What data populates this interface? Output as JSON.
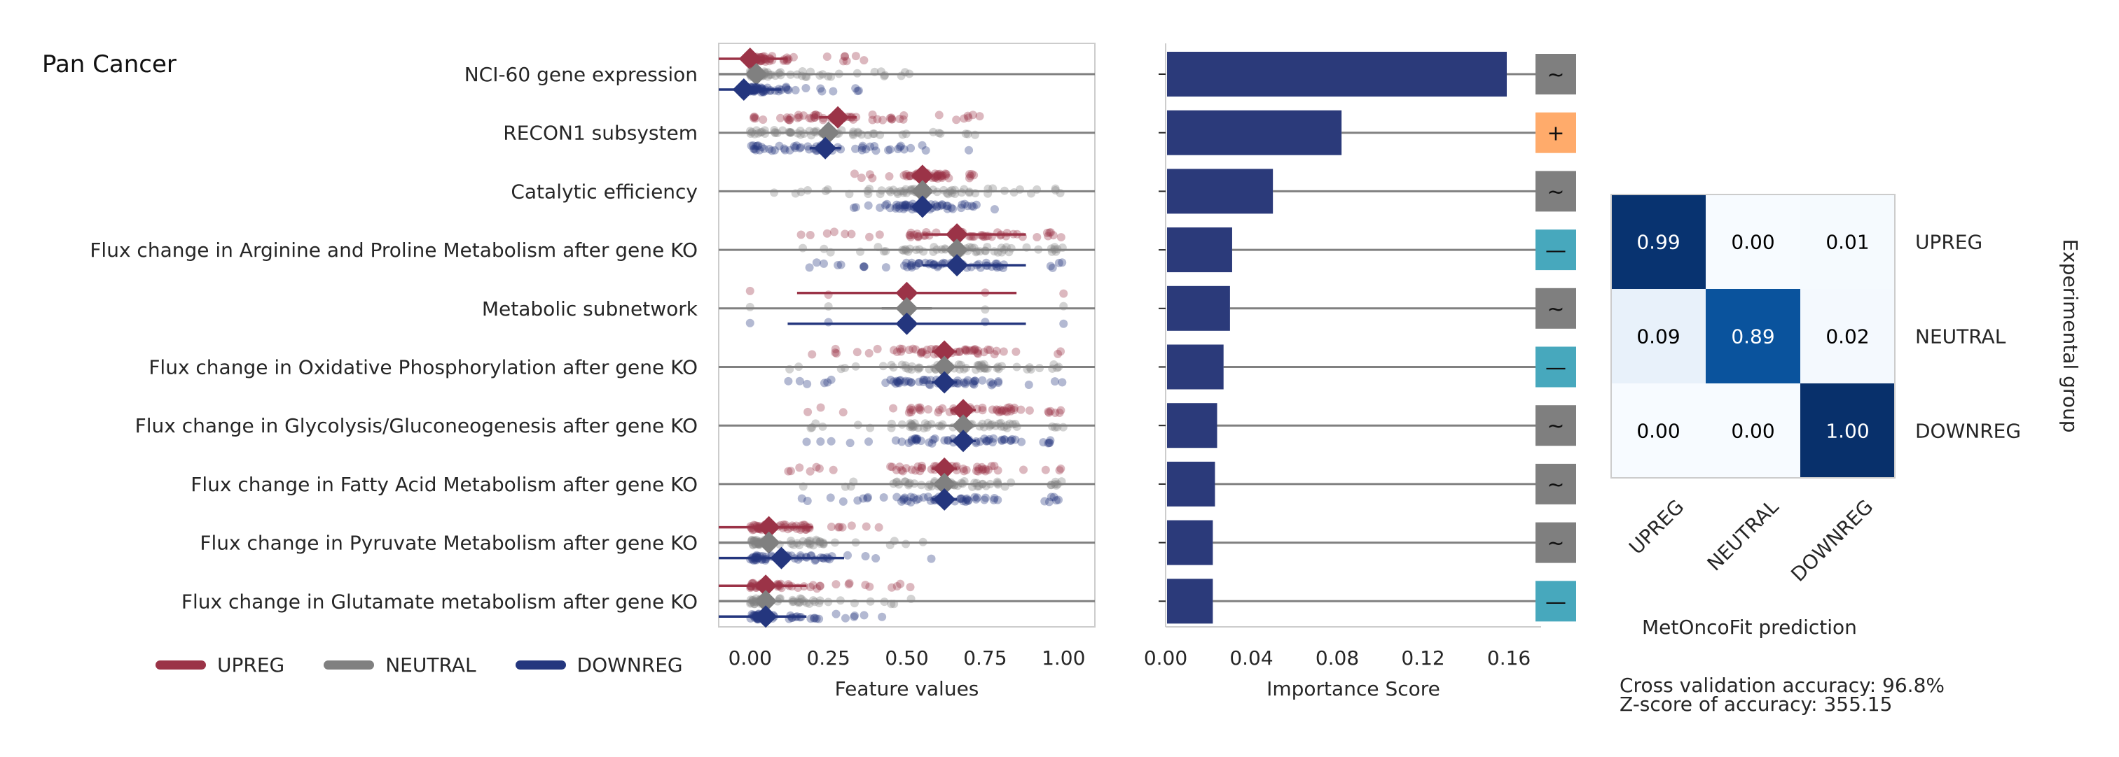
{
  "panel_title": "Pan Cancer",
  "colors": {
    "upreg": "#9b3347",
    "neutral": "#808080",
    "downreg": "#24367e",
    "bar": "#2b3a7a",
    "sign_tilde": "#7f7f7f",
    "sign_plus": "#ffab6b",
    "sign_minus": "#47a8bd"
  },
  "legend": [
    {
      "label": "UPREG",
      "color_key": "upreg"
    },
    {
      "label": "NEUTRAL",
      "color_key": "neutral"
    },
    {
      "label": "DOWNREG",
      "color_key": "downreg"
    }
  ],
  "chart_data": [
    {
      "type": "scatter",
      "name": "feature_values",
      "xlabel": "Feature values",
      "xlim": [
        -0.1,
        1.1
      ],
      "xticks": [
        "0.00",
        "0.25",
        "0.50",
        "0.75",
        "1.00"
      ],
      "xtick_values": [
        0,
        0.25,
        0.5,
        0.75,
        1.0
      ],
      "features": [
        {
          "label": "NCI-60 gene expression",
          "groups": [
            {
              "group": "UPREG",
              "mean": 0.0,
              "ci": [
                -0.1,
                0.12
              ],
              "range": [
                0.0,
                0.8
              ]
            },
            {
              "group": "NEUTRAL",
              "mean": 0.02,
              "ci": [
                -0.1,
                0.14
              ],
              "range": [
                0.0,
                1.0
              ]
            },
            {
              "group": "DOWNREG",
              "mean": -0.02,
              "ci": [
                -0.1,
                0.1
              ],
              "range": [
                0.0,
                0.78
              ]
            }
          ]
        },
        {
          "label": "RECON1 subsystem",
          "groups": [
            {
              "group": "UPREG",
              "mean": 0.28,
              "ci": [
                0.22,
                0.34
              ],
              "range": [
                0.0,
                0.95
              ]
            },
            {
              "group": "NEUTRAL",
              "mean": 0.25,
              "ci": [
                0.21,
                0.29
              ],
              "range": [
                0.0,
                1.0
              ]
            },
            {
              "group": "DOWNREG",
              "mean": 0.24,
              "ci": [
                0.19,
                0.29
              ],
              "range": [
                0.0,
                1.0
              ]
            }
          ]
        },
        {
          "label": "Catalytic efficiency",
          "groups": [
            {
              "group": "UPREG",
              "mean": 0.55,
              "ci": [
                0.52,
                0.58
              ],
              "range": [
                0.3,
                0.75
              ]
            },
            {
              "group": "NEUTRAL",
              "mean": 0.55,
              "ci": [
                0.52,
                0.58
              ],
              "range": [
                0.0,
                1.0
              ]
            },
            {
              "group": "DOWNREG",
              "mean": 0.55,
              "ci": [
                0.52,
                0.58
              ],
              "range": [
                0.3,
                0.8
              ]
            }
          ]
        },
        {
          "label": "Flux change in Arginine and Proline Metabolism after gene KO",
          "groups": [
            {
              "group": "UPREG",
              "mean": 0.66,
              "ci": [
                0.55,
                0.88
              ],
              "range": [
                0.0,
                1.0
              ]
            },
            {
              "group": "NEUTRAL",
              "mean": 0.66,
              "ci": [
                0.6,
                0.72
              ],
              "range": [
                0.0,
                1.0
              ]
            },
            {
              "group": "DOWNREG",
              "mean": 0.66,
              "ci": [
                0.55,
                0.88
              ],
              "range": [
                0.0,
                1.0
              ]
            }
          ]
        },
        {
          "label": "Metabolic subnetwork",
          "groups": [
            {
              "group": "UPREG",
              "mean": 0.5,
              "ci": [
                0.15,
                0.85
              ],
              "range": [
                0.0,
                1.0
              ]
            },
            {
              "group": "NEUTRAL",
              "mean": 0.5,
              "ci": [
                0.42,
                0.58
              ],
              "range": [
                0.0,
                1.0
              ]
            },
            {
              "group": "DOWNREG",
              "mean": 0.5,
              "ci": [
                0.12,
                0.88
              ],
              "range": [
                0.0,
                1.0
              ]
            }
          ]
        },
        {
          "label": "Flux change in Oxidative Phosphorylation after gene KO",
          "groups": [
            {
              "group": "UPREG",
              "mean": 0.62,
              "ci": [
                0.58,
                0.66
              ],
              "range": [
                0.0,
                1.0
              ]
            },
            {
              "group": "NEUTRAL",
              "mean": 0.62,
              "ci": [
                0.58,
                0.66
              ],
              "range": [
                0.0,
                1.0
              ]
            },
            {
              "group": "DOWNREG",
              "mean": 0.62,
              "ci": [
                0.58,
                0.66
              ],
              "range": [
                0.0,
                1.0
              ]
            }
          ]
        },
        {
          "label": "Flux change in Glycolysis/Gluconeogenesis after gene KO",
          "groups": [
            {
              "group": "UPREG",
              "mean": 0.68,
              "ci": [
                0.64,
                0.72
              ],
              "range": [
                0.0,
                1.0
              ]
            },
            {
              "group": "NEUTRAL",
              "mean": 0.68,
              "ci": [
                0.64,
                0.72
              ],
              "range": [
                0.0,
                1.0
              ]
            },
            {
              "group": "DOWNREG",
              "mean": 0.68,
              "ci": [
                0.64,
                0.72
              ],
              "range": [
                0.0,
                1.0
              ]
            }
          ]
        },
        {
          "label": "Flux change in Fatty Acid Metabolism after gene KO",
          "groups": [
            {
              "group": "UPREG",
              "mean": 0.62,
              "ci": [
                0.58,
                0.66
              ],
              "range": [
                0.0,
                1.0
              ]
            },
            {
              "group": "NEUTRAL",
              "mean": 0.62,
              "ci": [
                0.58,
                0.66
              ],
              "range": [
                0.0,
                1.0
              ]
            },
            {
              "group": "DOWNREG",
              "mean": 0.62,
              "ci": [
                0.58,
                0.66
              ],
              "range": [
                0.0,
                1.0
              ]
            }
          ]
        },
        {
          "label": "Flux change in Pyruvate Metabolism after gene KO",
          "groups": [
            {
              "group": "UPREG",
              "mean": 0.06,
              "ci": [
                -0.1,
                0.2
              ],
              "range": [
                0.0,
                0.8
              ]
            },
            {
              "group": "NEUTRAL",
              "mean": 0.06,
              "ci": [
                -0.1,
                0.2
              ],
              "range": [
                0.0,
                1.0
              ]
            },
            {
              "group": "DOWNREG",
              "mean": 0.1,
              "ci": [
                -0.1,
                0.3
              ],
              "range": [
                0.0,
                1.0
              ]
            }
          ]
        },
        {
          "label": "Flux change in Glutamate metabolism after gene KO",
          "groups": [
            {
              "group": "UPREG",
              "mean": 0.05,
              "ci": [
                -0.1,
                0.18
              ],
              "range": [
                0.0,
                0.95
              ]
            },
            {
              "group": "NEUTRAL",
              "mean": 0.05,
              "ci": [
                -0.1,
                0.18
              ],
              "range": [
                0.0,
                1.0
              ]
            },
            {
              "group": "DOWNREG",
              "mean": 0.05,
              "ci": [
                -0.1,
                0.18
              ],
              "range": [
                0.0,
                0.95
              ]
            }
          ]
        }
      ]
    },
    {
      "type": "bar",
      "name": "importance",
      "xlabel": "Importance Score",
      "xlim": [
        0,
        0.175
      ],
      "xticks": [
        "0.00",
        "0.04",
        "0.08",
        "0.12",
        "0.16"
      ],
      "xtick_values": [
        0,
        0.04,
        0.08,
        0.12,
        0.16
      ],
      "categories": [
        "NCI-60 gene expression",
        "RECON1 subsystem",
        "Catalytic efficiency",
        "Flux change in Arginine and Proline Metabolism after gene KO",
        "Metabolic subnetwork",
        "Flux change in Oxidative Phosphorylation after gene KO",
        "Flux change in Glycolysis/Gluconeogenesis after gene KO",
        "Flux change in Fatty Acid Metabolism after gene KO",
        "Flux change in Pyruvate Metabolism after gene KO",
        "Flux change in Glutamate metabolism after gene KO"
      ],
      "values": [
        0.159,
        0.082,
        0.05,
        0.031,
        0.03,
        0.027,
        0.024,
        0.023,
        0.022,
        0.022
      ],
      "signs": [
        {
          "symbol": "~",
          "kind": "tilde"
        },
        {
          "symbol": "+",
          "kind": "plus"
        },
        {
          "symbol": "~",
          "kind": "tilde"
        },
        {
          "symbol": "—",
          "kind": "minus"
        },
        {
          "symbol": "~",
          "kind": "tilde"
        },
        {
          "symbol": "—",
          "kind": "minus"
        },
        {
          "symbol": "~",
          "kind": "tilde"
        },
        {
          "symbol": "~",
          "kind": "tilde"
        },
        {
          "symbol": "~",
          "kind": "tilde"
        },
        {
          "symbol": "—",
          "kind": "minus"
        }
      ]
    },
    {
      "type": "heatmap",
      "name": "confusion_matrix",
      "rows": [
        "UPREG",
        "NEUTRAL",
        "DOWNREG"
      ],
      "columns": [
        "UPREG",
        "NEUTRAL",
        "DOWNREG"
      ],
      "values": [
        [
          0.99,
          0.0,
          0.01
        ],
        [
          0.09,
          0.89,
          0.02
        ],
        [
          0.0,
          0.0,
          1.0
        ]
      ],
      "value_labels": [
        [
          "0.99",
          "0.00",
          "0.01"
        ],
        [
          "0.09",
          "0.89",
          "0.02"
        ],
        [
          "0.00",
          "0.00",
          "1.00"
        ]
      ],
      "xlabel": "MetOncoFit prediction",
      "ylabel": "Experimental group"
    }
  ],
  "cv_accuracy": "Cross validation accuracy: 96.8%",
  "zscore": "Z-score of accuracy: 355.15"
}
